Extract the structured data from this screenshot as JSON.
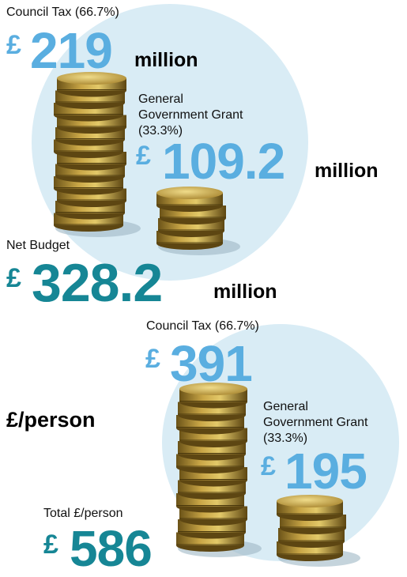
{
  "budget": {
    "council_tax": {
      "label": "Council Tax (66.7%)",
      "currency": "£",
      "amount": "219",
      "unit": "million"
    },
    "grant": {
      "label": "General Government Grant (33.3%)",
      "currency": "£",
      "amount": "109.2",
      "unit": "million"
    },
    "net": {
      "label": "Net Budget",
      "currency": "£",
      "amount": "328.2",
      "unit": "million"
    }
  },
  "per_person": {
    "heading": "£/person",
    "council_tax": {
      "label": "Council Tax (66.7%)",
      "currency": "£",
      "amount": "391"
    },
    "grant": {
      "label": "General Government Grant (33.3%)",
      "currency": "£",
      "amount": "195"
    },
    "total": {
      "label": "Total £/person",
      "currency": "£",
      "amount": "586"
    }
  }
}
